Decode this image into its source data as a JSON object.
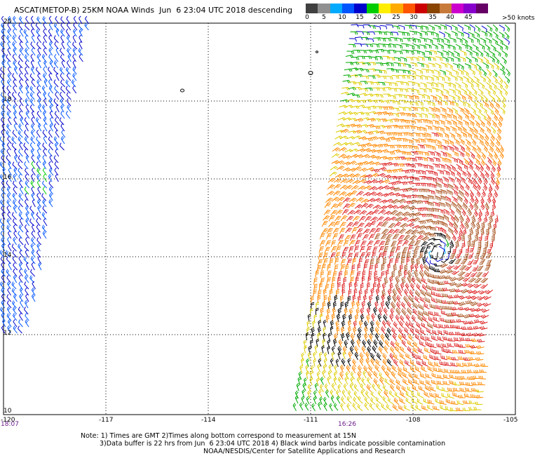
{
  "title": "ASCAT(METOP-B) 25KM NOAA Winds  Jun  6 23:04 UTC 2018 descending",
  "colorbar": {
    "colors": [
      "#404040",
      "#909090",
      "#00aaff",
      "#0055ff",
      "#0000cc",
      "#00cc00",
      "#ffee00",
      "#ffaa00",
      "#ff5500",
      "#cc0000",
      "#884400",
      "#c87a3a",
      "#cc00cc",
      "#8800cc",
      "#660066"
    ],
    "labels": [
      "0",
      "5",
      "10",
      "15",
      "20",
      "25",
      "30",
      "35",
      "40",
      "45",
      ">50 knots"
    ]
  },
  "map": {
    "lat_labels": [
      "20",
      "18",
      "16",
      "14",
      "12",
      "10"
    ],
    "lon_labels": [
      "-120",
      "-117",
      "-114",
      "-111",
      "-108",
      "-105"
    ],
    "time_labels": [
      "18:07",
      "16:26"
    ]
  },
  "notes": [
    "Note: 1) Times are GMT 2)Times along bottom correspond to measurement at 15N",
    "3)Data buffer is 22 hrs from Jun  6 23:04 UTC 2018 4) Black wind barbs indicate possible contamination",
    "NOAA/NESDIS/Center for Satellite Applications and Research"
  ],
  "wind_field": {
    "storm_center": {
      "lon": -107.3,
      "lat": 14.1
    },
    "speed_colors": {
      "lt10": "#00aaff",
      "lt15": "#0000cc",
      "lt20": "#00aa00",
      "lt25": "#ddcc00",
      "lt30": "#ff8800",
      "lt35": "#dd2222",
      "lt40": "#aa5522",
      "ge40": "#000000"
    }
  }
}
